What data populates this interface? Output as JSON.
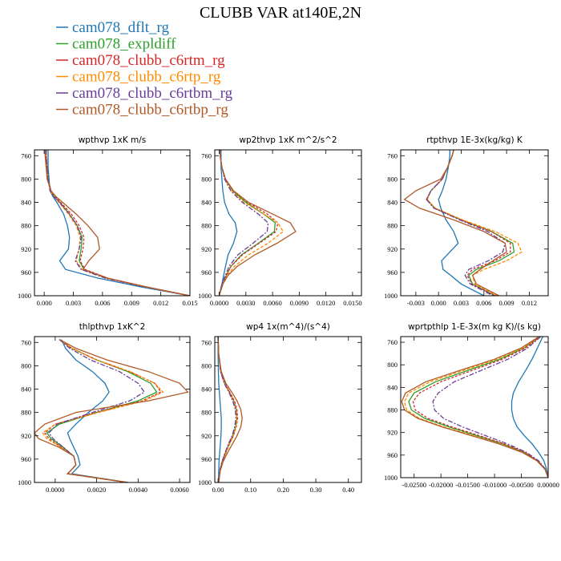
{
  "figure_title": "CLUBB VAR at140E,2N",
  "legend": [
    {
      "name": "cam078_dflt_rg",
      "color": "#1f77b4"
    },
    {
      "name": "cam078_expldiff",
      "color": "#2ca02c"
    },
    {
      "name": "cam078_clubb_c6rtm_rg",
      "color": "#d62728"
    },
    {
      "name": "cam078_clubb_c6rtp_rg",
      "color": "#ff8c00"
    },
    {
      "name": "cam078_clubb_c6rtbm_rg",
      "color": "#6a3d9a"
    },
    {
      "name": "cam078_clubb_c6rtbp_rg",
      "color": "#b05a28"
    }
  ],
  "chart_data": [
    {
      "type": "line",
      "title": "wpthvp  1xK m/s",
      "xlim": [
        -0.001,
        0.015
      ],
      "xticks": [
        0.0,
        0.003,
        0.006,
        0.009,
        0.012,
        0.015
      ],
      "xtick_labels": [
        "0.000",
        "0.003",
        "0.006",
        "0.009",
        "0.012",
        "0.015"
      ],
      "ylim": [
        1000,
        750
      ],
      "yticks": [
        760,
        800,
        840,
        880,
        920,
        960,
        1000
      ],
      "y": [
        750,
        760,
        780,
        800,
        820,
        830,
        840,
        860,
        880,
        900,
        920,
        940,
        955,
        970,
        985,
        1000
      ],
      "series": [
        {
          "name": "cam078_dflt_rg",
          "values": [
            0.0004,
            0.0004,
            0.0004,
            0.0005,
            0.0006,
            0.0009,
            0.0013,
            0.002,
            0.0024,
            0.0026,
            0.0025,
            0.0016,
            0.0022,
            0.0056,
            0.01,
            0.015
          ]
        },
        {
          "name": "cam078_expldiff",
          "values": [
            0.0002,
            0.0002,
            0.0003,
            0.0004,
            0.0007,
            0.001,
            0.0016,
            0.0026,
            0.0034,
            0.0039,
            0.0038,
            0.0036,
            0.0041,
            0.0065,
            0.0105,
            0.015
          ]
        },
        {
          "name": "cam078_clubb_c6rtm_rg",
          "values": [
            0.0002,
            0.0002,
            0.0003,
            0.0004,
            0.0007,
            0.0011,
            0.0017,
            0.0028,
            0.0036,
            0.0041,
            0.004,
            0.0037,
            0.0042,
            0.0066,
            0.0105,
            0.015
          ]
        },
        {
          "name": "cam078_clubb_c6rtp_rg",
          "values": [
            0.0002,
            0.0002,
            0.0003,
            0.0004,
            0.0006,
            0.001,
            0.0015,
            0.0025,
            0.0033,
            0.0037,
            0.0036,
            0.0033,
            0.0039,
            0.0064,
            0.0104,
            0.015
          ]
        },
        {
          "name": "cam078_clubb_c6rtbm_rg",
          "values": [
            0.0002,
            0.0002,
            0.0003,
            0.0004,
            0.0006,
            0.001,
            0.0016,
            0.0026,
            0.0034,
            0.0038,
            0.0036,
            0.0032,
            0.0038,
            0.0063,
            0.0104,
            0.015
          ]
        },
        {
          "name": "cam078_clubb_c6rtbp_rg",
          "values": [
            0.0001,
            0.0001,
            0.0002,
            0.0003,
            0.0007,
            0.0012,
            0.0019,
            0.0033,
            0.0045,
            0.0055,
            0.0057,
            0.0046,
            0.004,
            0.0066,
            0.0106,
            0.015
          ]
        }
      ]
    },
    {
      "type": "line",
      "title": "wp2thvp  1xK m^2/s^2",
      "xlim": [
        -0.0005,
        0.016
      ],
      "xticks": [
        0.0,
        0.003,
        0.006,
        0.009,
        0.012,
        0.015
      ],
      "xtick_labels": [
        "0.0000",
        "0.0030",
        "0.0060",
        "0.0090",
        "0.0120",
        "0.0150"
      ],
      "ylim": [
        1000,
        750
      ],
      "yticks": [
        760,
        800,
        840,
        880,
        920,
        960,
        1000
      ],
      "y": [
        750,
        760,
        780,
        800,
        820,
        840,
        860,
        875,
        890,
        910,
        930,
        950,
        965,
        980,
        1000
      ],
      "series": [
        {
          "name": "cam078_dflt_rg",
          "values": [
            0.0002,
            0.0002,
            0.0002,
            0.0003,
            0.0004,
            0.0006,
            0.0011,
            0.0018,
            0.002,
            0.0016,
            0.001,
            0.0007,
            0.0005,
            0.0003,
            0.0
          ]
        },
        {
          "name": "cam078_expldiff",
          "values": [
            0.0001,
            0.0001,
            0.0003,
            0.0007,
            0.0015,
            0.003,
            0.005,
            0.0063,
            0.0062,
            0.0044,
            0.0025,
            0.0013,
            0.0008,
            0.0004,
            0.0
          ]
        },
        {
          "name": "cam078_clubb_c6rtm_rg",
          "values": [
            0.0001,
            0.0001,
            0.0003,
            0.0007,
            0.0016,
            0.0032,
            0.0054,
            0.0066,
            0.0064,
            0.0045,
            0.0026,
            0.0013,
            0.0008,
            0.0004,
            0.0
          ]
        },
        {
          "name": "cam078_clubb_c6rtp_rg",
          "values": [
            0.0001,
            0.0001,
            0.0003,
            0.0006,
            0.0014,
            0.0028,
            0.005,
            0.0066,
            0.0072,
            0.0055,
            0.0033,
            0.0017,
            0.0009,
            0.0004,
            0.0
          ]
        },
        {
          "name": "cam078_clubb_c6rtbm_rg",
          "values": [
            0.0001,
            0.0001,
            0.0003,
            0.0006,
            0.0013,
            0.0026,
            0.0044,
            0.0055,
            0.0054,
            0.0038,
            0.0021,
            0.0011,
            0.0007,
            0.0003,
            0.0
          ]
        },
        {
          "name": "cam078_clubb_c6rtbp_rg",
          "values": [
            0.0001,
            0.0001,
            0.0003,
            0.0007,
            0.0016,
            0.0033,
            0.006,
            0.008,
            0.0086,
            0.0065,
            0.004,
            0.002,
            0.001,
            0.0004,
            0.0
          ]
        }
      ]
    },
    {
      "type": "line",
      "title": "rtpthvp  1E-3x(kg/kg) K",
      "xlim": [
        -0.005,
        0.0145
      ],
      "xticks": [
        -0.003,
        0.0,
        0.003,
        0.006,
        0.009,
        0.012
      ],
      "xtick_labels": [
        "-0.003",
        "0.000",
        "0.003",
        "0.006",
        "0.009",
        "0.012"
      ],
      "ylim": [
        1000,
        750
      ],
      "yticks": [
        760,
        800,
        840,
        880,
        920,
        960,
        1000
      ],
      "y": [
        750,
        760,
        780,
        800,
        820,
        835,
        850,
        870,
        890,
        910,
        925,
        940,
        955,
        965,
        980,
        1000
      ],
      "series": [
        {
          "name": "cam078_dflt_rg",
          "values": [
            0.0015,
            0.0015,
            0.0013,
            0.001,
            0.0005,
            0.0,
            0.0003,
            0.001,
            0.002,
            0.0026,
            0.0015,
            0.0004,
            0.0006,
            0.0016,
            0.003,
            0.006
          ]
        },
        {
          "name": "cam078_expldiff",
          "values": [
            0.002,
            0.0018,
            0.0012,
            0.0005,
            -0.001,
            -0.0015,
            -0.0005,
            0.003,
            0.007,
            0.0098,
            0.01,
            0.008,
            0.005,
            0.004,
            0.0045,
            0.0075
          ]
        },
        {
          "name": "cam078_clubb_c6rtm_rg",
          "values": [
            0.002,
            0.0018,
            0.0012,
            0.0005,
            -0.001,
            -0.0016,
            -0.0005,
            0.003,
            0.007,
            0.0095,
            0.0095,
            0.0075,
            0.0045,
            0.0038,
            0.0044,
            0.0075
          ]
        },
        {
          "name": "cam078_clubb_c6rtp_rg",
          "values": [
            0.002,
            0.0018,
            0.0012,
            0.0005,
            -0.001,
            -0.0015,
            -0.0004,
            0.0032,
            0.0075,
            0.0105,
            0.011,
            0.009,
            0.006,
            0.0045,
            0.0048,
            0.0078
          ]
        },
        {
          "name": "cam078_clubb_c6rtbm_rg",
          "values": [
            0.002,
            0.0018,
            0.0012,
            0.0005,
            -0.001,
            -0.0016,
            -0.0006,
            0.0028,
            0.0065,
            0.0088,
            0.0085,
            0.0066,
            0.004,
            0.0035,
            0.0042,
            0.0072
          ]
        },
        {
          "name": "cam078_clubb_c6rtbp_rg",
          "values": [
            0.002,
            0.0018,
            0.0012,
            0.0003,
            -0.003,
            -0.0045,
            -0.0025,
            0.002,
            0.006,
            0.0088,
            0.009,
            0.0072,
            0.0055,
            0.0045,
            0.005,
            0.008
          ]
        }
      ]
    },
    {
      "type": "line",
      "title": "thlpthvp  1xK^2",
      "xlim": [
        -0.001,
        0.0065
      ],
      "xticks": [
        0.0,
        0.002,
        0.004,
        0.006
      ],
      "xtick_labels": [
        "0.0000",
        "0.0020",
        "0.0040",
        "0.0060"
      ],
      "ylim": [
        1000,
        750
      ],
      "yticks": [
        760,
        800,
        840,
        880,
        920,
        960,
        1000
      ],
      "y": [
        755,
        770,
        790,
        810,
        830,
        845,
        860,
        880,
        900,
        915,
        925,
        940,
        955,
        970,
        985,
        1000
      ],
      "series": [
        {
          "name": "cam078_dflt_rg",
          "values": [
            0.0003,
            0.0005,
            0.001,
            0.0018,
            0.0024,
            0.0026,
            0.0023,
            0.0016,
            0.001,
            0.0006,
            0.0007,
            0.0009,
            0.0011,
            0.0012,
            0.0008,
            0.0035
          ]
        },
        {
          "name": "cam078_expldiff",
          "values": [
            0.0002,
            0.0008,
            0.002,
            0.0035,
            0.0046,
            0.0049,
            0.004,
            0.002,
            0.0002,
            -0.0004,
            -0.0002,
            0.0004,
            0.0009,
            0.001,
            0.0006,
            0.0035
          ]
        },
        {
          "name": "cam078_clubb_c6rtm_rg",
          "values": [
            0.0002,
            0.0008,
            0.002,
            0.0036,
            0.0048,
            0.0051,
            0.0042,
            0.002,
            0.0,
            -0.0005,
            -0.0003,
            0.0003,
            0.0009,
            0.001,
            0.0006,
            0.0035
          ]
        },
        {
          "name": "cam078_clubb_c6rtp_rg",
          "values": [
            0.0002,
            0.0008,
            0.002,
            0.0036,
            0.0048,
            0.0052,
            0.0043,
            0.0021,
            0.0,
            -0.0006,
            -0.0004,
            0.0003,
            0.0009,
            0.001,
            0.0006,
            0.0035
          ]
        },
        {
          "name": "cam078_clubb_c6rtbm_rg",
          "values": [
            0.0002,
            0.0007,
            0.0017,
            0.0031,
            0.004,
            0.0043,
            0.0036,
            0.0018,
            0.0001,
            -0.0003,
            -0.0001,
            0.0004,
            0.0009,
            0.001,
            0.0006,
            0.0035
          ]
        },
        {
          "name": "cam078_clubb_c6rtbp_rg",
          "values": [
            0.0002,
            0.001,
            0.0025,
            0.0045,
            0.006,
            0.0064,
            0.0045,
            0.001,
            -0.0005,
            -0.001,
            -0.0008,
            0.0002,
            0.0009,
            0.001,
            0.0006,
            0.0035
          ]
        }
      ]
    },
    {
      "type": "line",
      "title": "wp4  1x(m^4)/(s^4)",
      "xlim": [
        -0.01,
        0.44
      ],
      "xticks": [
        0.0,
        0.1,
        0.2,
        0.3,
        0.4
      ],
      "xtick_labels": [
        "0.00",
        "0.10",
        "0.20",
        "0.30",
        "0.40"
      ],
      "ylim": [
        1000,
        750
      ],
      "yticks": [
        760,
        800,
        840,
        880,
        920,
        960,
        1000
      ],
      "y": [
        750,
        780,
        810,
        830,
        845,
        860,
        875,
        890,
        905,
        920,
        935,
        950,
        965,
        980,
        1000
      ],
      "series": [
        {
          "name": "cam078_dflt_rg",
          "values": [
            0.0,
            0.0,
            0.001,
            0.002,
            0.004,
            0.006,
            0.008,
            0.01,
            0.01,
            0.009,
            0.007,
            0.005,
            0.003,
            0.002,
            0.001
          ]
        },
        {
          "name": "cam078_expldiff",
          "values": [
            0.0,
            0.002,
            0.008,
            0.02,
            0.035,
            0.048,
            0.056,
            0.058,
            0.054,
            0.045,
            0.033,
            0.022,
            0.012,
            0.006,
            0.002
          ]
        },
        {
          "name": "cam078_clubb_c6rtm_rg",
          "values": [
            0.0,
            0.002,
            0.009,
            0.021,
            0.036,
            0.05,
            0.058,
            0.06,
            0.056,
            0.047,
            0.034,
            0.023,
            0.013,
            0.006,
            0.002
          ]
        },
        {
          "name": "cam078_clubb_c6rtp_rg",
          "values": [
            0.0,
            0.002,
            0.008,
            0.02,
            0.034,
            0.047,
            0.055,
            0.058,
            0.055,
            0.047,
            0.035,
            0.024,
            0.013,
            0.006,
            0.002
          ]
        },
        {
          "name": "cam078_clubb_c6rtbm_rg",
          "values": [
            0.0,
            0.002,
            0.008,
            0.019,
            0.033,
            0.045,
            0.053,
            0.055,
            0.051,
            0.043,
            0.031,
            0.021,
            0.012,
            0.005,
            0.002
          ]
        },
        {
          "name": "cam078_clubb_c6rtbp_rg",
          "values": [
            0.0,
            0.002,
            0.01,
            0.024,
            0.042,
            0.058,
            0.07,
            0.074,
            0.07,
            0.058,
            0.043,
            0.028,
            0.015,
            0.007,
            0.002
          ]
        }
      ]
    },
    {
      "type": "line",
      "title": "wprtpthlp  1-E-3x(m kg K)/(s kg)",
      "xlim": [
        -0.0275,
        0.0
      ],
      "xticks": [
        -0.025,
        -0.02,
        -0.015,
        -0.01,
        -0.005,
        0.0
      ],
      "xtick_labels": [
        "-0.02500",
        "-0.02000",
        "-0.01500",
        "-0.01000",
        "-0.00500",
        "0.00000"
      ],
      "ylim": [
        1000,
        750
      ],
      "yticks": [
        760,
        800,
        840,
        880,
        920,
        960,
        1000
      ],
      "y": [
        750,
        770,
        790,
        810,
        830,
        850,
        865,
        880,
        895,
        910,
        925,
        940,
        955,
        970,
        985,
        1000
      ],
      "series": [
        {
          "name": "cam078_dflt_rg",
          "values": [
            -0.001,
            -0.002,
            -0.003,
            -0.0042,
            -0.0055,
            -0.0065,
            -0.0068,
            -0.0068,
            -0.0065,
            -0.0058,
            -0.0045,
            -0.003,
            -0.0018,
            -0.0008,
            -0.0003,
            0.0
          ]
        },
        {
          "name": "cam078_expldiff",
          "values": [
            -0.0015,
            -0.0045,
            -0.009,
            -0.015,
            -0.021,
            -0.025,
            -0.026,
            -0.0255,
            -0.023,
            -0.0185,
            -0.0135,
            -0.0085,
            -0.0045,
            -0.002,
            -0.0006,
            0.0
          ]
        },
        {
          "name": "cam078_clubb_c6rtm_rg",
          "values": [
            -0.0015,
            -0.0042,
            -0.0085,
            -0.0142,
            -0.02,
            -0.024,
            -0.0252,
            -0.0248,
            -0.0224,
            -0.018,
            -0.013,
            -0.0082,
            -0.0044,
            -0.0019,
            -0.0006,
            0.0
          ]
        },
        {
          "name": "cam078_clubb_c6rtp_rg",
          "values": [
            -0.0016,
            -0.0047,
            -0.0095,
            -0.0158,
            -0.022,
            -0.026,
            -0.0268,
            -0.0264,
            -0.024,
            -0.0195,
            -0.0142,
            -0.009,
            -0.0048,
            -0.0021,
            -0.0006,
            0.0
          ]
        },
        {
          "name": "cam078_clubb_c6rtbm_rg",
          "values": [
            -0.0014,
            -0.0038,
            -0.0075,
            -0.0125,
            -0.0175,
            -0.0205,
            -0.0215,
            -0.0212,
            -0.0195,
            -0.016,
            -0.0118,
            -0.0076,
            -0.0041,
            -0.0018,
            -0.0005,
            0.0
          ]
        },
        {
          "name": "cam078_clubb_c6rtbp_rg",
          "values": [
            -0.0017,
            -0.005,
            -0.01,
            -0.0165,
            -0.0228,
            -0.0266,
            -0.0273,
            -0.0268,
            -0.0243,
            -0.0198,
            -0.0145,
            -0.0092,
            -0.0049,
            -0.0021,
            -0.0006,
            0.0
          ]
        }
      ]
    }
  ]
}
